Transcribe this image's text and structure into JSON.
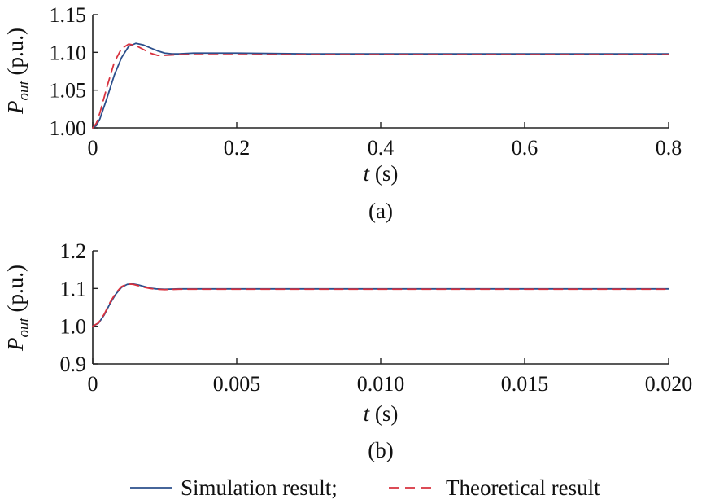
{
  "chart_data": [
    {
      "type": "line",
      "panel_label": "(a)",
      "xlabel_var": "t",
      "xlabel_unit": " (s)",
      "ylabel_var": "P",
      "ylabel_sub": "out",
      "ylabel_unit": " (p.u.)",
      "xlim": [
        0,
        0.8
      ],
      "ylim": [
        1.0,
        1.15
      ],
      "xticks": [
        0,
        0.2,
        0.4,
        0.6,
        0.8
      ],
      "xtick_labels": [
        "0",
        "0.2",
        "0.4",
        "0.6",
        "0.8"
      ],
      "yticks": [
        1.0,
        1.05,
        1.1,
        1.15
      ],
      "ytick_labels": [
        "1.00",
        "1.05",
        "1.10",
        "1.15"
      ],
      "grid": false,
      "series": [
        {
          "name": "Simulation result",
          "color": "#2c4f8c",
          "style": "solid",
          "x": [
            0,
            0.005,
            0.01,
            0.02,
            0.03,
            0.04,
            0.05,
            0.06,
            0.07,
            0.08,
            0.09,
            0.1,
            0.11,
            0.12,
            0.14,
            0.16,
            0.2,
            0.3,
            0.4,
            0.5,
            0.6,
            0.7,
            0.8
          ],
          "y": [
            1.0,
            1.003,
            1.012,
            1.04,
            1.07,
            1.093,
            1.108,
            1.112,
            1.11,
            1.106,
            1.102,
            1.099,
            1.098,
            1.098,
            1.099,
            1.099,
            1.099,
            1.098,
            1.098,
            1.098,
            1.098,
            1.098,
            1.098
          ]
        },
        {
          "name": "Theoretical result",
          "color": "#d8323f",
          "style": "dashed",
          "x": [
            0,
            0.005,
            0.01,
            0.02,
            0.03,
            0.04,
            0.05,
            0.06,
            0.07,
            0.08,
            0.09,
            0.1,
            0.12,
            0.14,
            0.2,
            0.3,
            0.4,
            0.5,
            0.6,
            0.7,
            0.8
          ],
          "y": [
            1.0,
            1.006,
            1.02,
            1.055,
            1.087,
            1.105,
            1.111,
            1.109,
            1.104,
            1.099,
            1.096,
            1.096,
            1.097,
            1.097,
            1.097,
            1.097,
            1.097,
            1.097,
            1.097,
            1.097,
            1.097
          ]
        }
      ]
    },
    {
      "type": "line",
      "panel_label": "(b)",
      "xlabel_var": "t",
      "xlabel_unit": " (s)",
      "ylabel_var": "P",
      "ylabel_sub": "out",
      "ylabel_unit": " (p.u.)",
      "xlim": [
        0,
        0.02
      ],
      "ylim": [
        0.9,
        1.2
      ],
      "xticks": [
        0,
        0.005,
        0.01,
        0.015,
        0.02
      ],
      "xtick_labels": [
        "0",
        "0.005",
        "0.010",
        "0.015",
        "0.020"
      ],
      "yticks": [
        0.9,
        1.0,
        1.1,
        1.2
      ],
      "ytick_labels": [
        "0.9",
        "1.0",
        "1.1",
        "1.2"
      ],
      "grid": false,
      "series": [
        {
          "name": "Simulation result",
          "color": "#2c4f8c",
          "style": "solid",
          "x": [
            0,
            0.0002,
            0.0004,
            0.0006,
            0.0008,
            0.001,
            0.0012,
            0.0014,
            0.0016,
            0.0018,
            0.002,
            0.0022,
            0.0025,
            0.003,
            0.005,
            0.01,
            0.015,
            0.02
          ],
          "y": [
            1.0,
            1.008,
            1.03,
            1.06,
            1.085,
            1.103,
            1.111,
            1.112,
            1.109,
            1.105,
            1.101,
            1.099,
            1.098,
            1.099,
            1.099,
            1.099,
            1.099,
            1.099
          ]
        },
        {
          "name": "Theoretical result",
          "color": "#d8323f",
          "style": "dashed",
          "x": [
            0,
            0.0002,
            0.0004,
            0.0006,
            0.0008,
            0.001,
            0.0012,
            0.0014,
            0.0016,
            0.0018,
            0.002,
            0.0022,
            0.0025,
            0.003,
            0.005,
            0.01,
            0.015,
            0.02
          ],
          "y": [
            1.0,
            1.009,
            1.032,
            1.063,
            1.088,
            1.105,
            1.112,
            1.111,
            1.107,
            1.103,
            1.1,
            1.098,
            1.097,
            1.098,
            1.098,
            1.098,
            1.098,
            1.098
          ]
        }
      ]
    }
  ],
  "legend": {
    "items": [
      {
        "label": "Simulation result",
        "separator": ";",
        "color": "#2c4f8c",
        "style": "solid"
      },
      {
        "label": "Theoretical result",
        "separator": "",
        "color": "#d8323f",
        "style": "dashed"
      }
    ],
    "placement": "bottom-center"
  }
}
